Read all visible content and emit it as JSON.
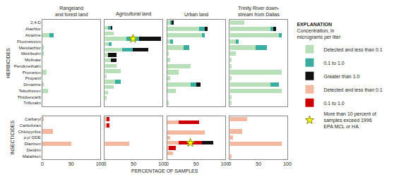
{
  "chart_data": [
    {
      "type": "bar",
      "orientation": "horizontal",
      "stacked": true,
      "grid": false,
      "tick_labels": "y",
      "title": "Rangeland\nand forest land",
      "ylabel": "HERBICIDES",
      "annotations": [
        {
          "text": "EXPLANATION"
        },
        {
          "text": "Concentration, in\nmicrograms per liter"
        }
      ],
      "categories": [
        "2,4-D",
        "Alachlor",
        "Atrazine",
        "Fluometuron",
        "Metolachlor",
        "Metribuzin",
        "Molinate",
        "Pendimethalin",
        "Prometon",
        "Propanil",
        "Simazine",
        "Tebuthiuron",
        "Thiobencarb",
        "Trifluralin"
      ],
      "xlim": [
        0,
        100
      ],
      "xticks": [
        0,
        50,
        100
      ],
      "series": [
        {
          "name": "Detected and less than 0.1",
          "color": "#b8e0b8",
          "values": [
            0,
            0,
            12,
            0,
            3,
            2,
            0,
            0,
            7,
            0,
            2,
            10,
            0,
            0
          ]
        },
        {
          "name": "0.1 to 1.0",
          "color": "#3aada0",
          "values": [
            0,
            0,
            8,
            0,
            0,
            0,
            0,
            0,
            0,
            0,
            0,
            0,
            0,
            0
          ]
        },
        {
          "name": "Greater than 1.0",
          "color": "#111111",
          "values": [
            0,
            0,
            0,
            0,
            0,
            0,
            0,
            0,
            0,
            0,
            0,
            0,
            0,
            0
          ]
        }
      ]
    },
    {
      "type": "bar",
      "orientation": "horizontal",
      "stacked": true,
      "grid": false,
      "tick_labels": false,
      "title": "Agricultural land",
      "categories": [
        "2,4-D",
        "Alachlor",
        "Atrazine",
        "Fluometuron",
        "Metolachlor",
        "Metribuzin",
        "Molinate",
        "Pendimethalin",
        "Prometon",
        "Propanil",
        "Simazine",
        "Tebuthiuron",
        "Thiobencarb",
        "Trifluralin"
      ],
      "xlim": [
        0,
        100
      ],
      "xticks": [
        0,
        50,
        100
      ],
      "series": [
        {
          "name": "Detected and less than 0.1",
          "color": "#b8e0b8",
          "values": [
            5,
            15,
            38,
            7,
            30,
            5,
            10,
            20,
            28,
            3,
            18,
            15,
            5,
            3
          ]
        },
        {
          "name": "0.1 to 1.0",
          "color": "#3aada0",
          "values": [
            5,
            0,
            22,
            5,
            18,
            0,
            0,
            0,
            0,
            0,
            10,
            0,
            0,
            0
          ]
        },
        {
          "name": "Greater than 1.0",
          "color": "#111111",
          "values": [
            3,
            0,
            38,
            0,
            28,
            15,
            10,
            0,
            0,
            0,
            0,
            0,
            0,
            0
          ]
        },
        {
          "name": "More than 10 percent of\nsamples exceed 1996\nEPA MCL or HA",
          "type": "scatter",
          "marker": "star",
          "color": "yellow",
          "values": [
            null,
            null,
            49,
            null,
            null,
            null,
            null,
            null,
            null,
            null,
            null,
            null,
            null,
            null
          ]
        }
      ]
    },
    {
      "type": "bar",
      "orientation": "horizontal",
      "stacked": true,
      "grid": false,
      "tick_labels": false,
      "title": "Urban land",
      "categories": [
        "2,4-D",
        "Alachlor",
        "Atrazine",
        "Fluometuron",
        "Metolachlor",
        "Metribuzin",
        "Molinate",
        "Pendimethalin",
        "Prometon",
        "Propanil",
        "Simazine",
        "Tebuthiuron",
        "Thiobencarb",
        "Trifluralin"
      ],
      "xlim": [
        0,
        100
      ],
      "xticks": [
        0,
        50,
        100
      ],
      "series": [
        {
          "name": "Detected and less than 0.1",
          "color": "#b8e0b8",
          "values": [
            5,
            55,
            60,
            5,
            28,
            3,
            5,
            40,
            20,
            5,
            40,
            15,
            0,
            3
          ]
        },
        {
          "name": "0.1 to 1.0",
          "color": "#3aada0",
          "values": [
            3,
            10,
            5,
            5,
            10,
            0,
            0,
            0,
            0,
            0,
            10,
            0,
            0,
            0
          ]
        },
        {
          "name": "Greater than 1.0",
          "color": "#111111",
          "values": [
            3,
            5,
            0,
            0,
            0,
            0,
            0,
            0,
            0,
            0,
            8,
            0,
            0,
            0
          ]
        }
      ]
    },
    {
      "type": "bar",
      "orientation": "horizontal",
      "stacked": true,
      "grid": false,
      "tick_labels": false,
      "title": "Trinity River down-\nstream from Dallas",
      "categories": [
        "2,4-D",
        "Alachlor",
        "Atrazine",
        "Fluometuron",
        "Metolachlor",
        "Metribuzin",
        "Molinate",
        "Pendimethalin",
        "Prometon",
        "Propanil",
        "Simazine",
        "Tebuthiuron",
        "Thiobencarb",
        "Trifluralin"
      ],
      "xlim": [
        0,
        100
      ],
      "xticks": [
        0,
        50,
        100
      ],
      "series": [
        {
          "name": "Detected and less than 0.1",
          "color": "#b8e0b8",
          "values": [
            25,
            70,
            85,
            10,
            45,
            10,
            3,
            3,
            90,
            3,
            70,
            90,
            3,
            3
          ]
        },
        {
          "name": "0.1 to 1.0",
          "color": "#3aada0",
          "values": [
            0,
            5,
            5,
            5,
            20,
            0,
            0,
            0,
            0,
            0,
            15,
            0,
            0,
            0
          ]
        },
        {
          "name": "Greater than 1.0",
          "color": "#111111",
          "values": [
            0,
            5,
            0,
            0,
            0,
            0,
            0,
            0,
            0,
            0,
            0,
            0,
            0,
            0
          ]
        }
      ]
    },
    {
      "type": "bar",
      "orientation": "horizontal",
      "stacked": true,
      "grid": false,
      "ylabel": "INSECTICIDES",
      "xlabel": "PERCENTAGE OF SAMPLES",
      "categories": [
        "Carbaryl",
        "Carbofuran",
        "Chlorpyrifos",
        "p,p'-DDE",
        "Diazinon",
        "Dieldrin",
        "Malathion"
      ],
      "xlim": [
        0,
        100
      ],
      "xticks": [
        0,
        50,
        100
      ],
      "series": [
        {
          "name": "Detected and less than 0.1",
          "color": "#f4b8a0",
          "values": [
            3,
            0,
            18,
            0,
            50,
            0,
            0
          ]
        },
        {
          "name": "0.1 to 1.0",
          "color": "#cc0000",
          "values": [
            0,
            0,
            0,
            0,
            0,
            0,
            0
          ]
        },
        {
          "name": "Greater than 1.0",
          "color": "#111111",
          "values": [
            0,
            0,
            0,
            0,
            0,
            0,
            0
          ]
        }
      ]
    },
    {
      "type": "bar",
      "orientation": "horizontal",
      "stacked": true,
      "grid": false,
      "tick_labels": "x",
      "categories": [
        "Carbaryl",
        "Carbofuran",
        "Chlorpyrifos",
        "p,p'-DDE",
        "Diazinon",
        "Dieldrin",
        "Malathion"
      ],
      "xlim": [
        0,
        100
      ],
      "xticks": [
        0,
        50,
        100
      ],
      "series": [
        {
          "name": "Detected and less than 0.1",
          "color": "#f4b8a0",
          "values": [
            3,
            3,
            0,
            0,
            42,
            0,
            0
          ]
        },
        {
          "name": "0.1 to 1.0",
          "color": "#cc0000",
          "values": [
            5,
            5,
            0,
            0,
            0,
            0,
            0
          ]
        },
        {
          "name": "Greater than 1.0",
          "color": "#111111",
          "values": [
            0,
            0,
            0,
            0,
            0,
            0,
            0
          ]
        }
      ]
    },
    {
      "type": "bar",
      "orientation": "horizontal",
      "stacked": true,
      "grid": false,
      "tick_labels": "x",
      "categories": [
        "Carbaryl",
        "Carbofuran",
        "Chlorpyrifos",
        "p,p'-DDE",
        "Diazinon",
        "Dieldrin",
        "Malathion"
      ],
      "xlim": [
        0,
        100
      ],
      "xticks": [
        0,
        50,
        100
      ],
      "series": [
        {
          "name": "Detected and less than 0.1",
          "color": "#f4b8a0",
          "values": [
            20,
            0,
            65,
            5,
            20,
            3,
            10
          ]
        },
        {
          "name": "0.1 to 1.0",
          "color": "#cc0000",
          "values": [
            35,
            0,
            0,
            0,
            40,
            12,
            0
          ]
        },
        {
          "name": "Greater than 1.0",
          "color": "#111111",
          "values": [
            0,
            0,
            0,
            0,
            20,
            0,
            0
          ]
        },
        {
          "name": "More than 10 percent of\nsamples exceed 1996\nEPA MCL or HA",
          "type": "scatter",
          "marker": "star",
          "color": "yellow",
          "values": [
            null,
            null,
            null,
            null,
            40,
            null,
            null
          ]
        }
      ]
    },
    {
      "type": "bar",
      "orientation": "horizontal",
      "stacked": true,
      "grid": false,
      "tick_labels": "x",
      "categories": [
        "Carbaryl",
        "Carbofuran",
        "Chlorpyrifos",
        "p,p'-DDE",
        "Diazinon",
        "Dieldrin",
        "Malathion"
      ],
      "xlim": [
        0,
        100
      ],
      "xticks": [
        0,
        50,
        100
      ],
      "series": [
        {
          "name": "Detected and less than 0.1",
          "color": "#f4b8a0",
          "values": [
            30,
            0,
            22,
            5,
            90,
            0,
            3
          ]
        },
        {
          "name": "0.1 to 1.0",
          "color": "#cc0000",
          "values": [
            0,
            0,
            0,
            0,
            0,
            0,
            0
          ]
        },
        {
          "name": "Greater than 1.0",
          "color": "#111111",
          "values": [
            0,
            0,
            0,
            0,
            0,
            0,
            0
          ]
        }
      ]
    }
  ]
}
